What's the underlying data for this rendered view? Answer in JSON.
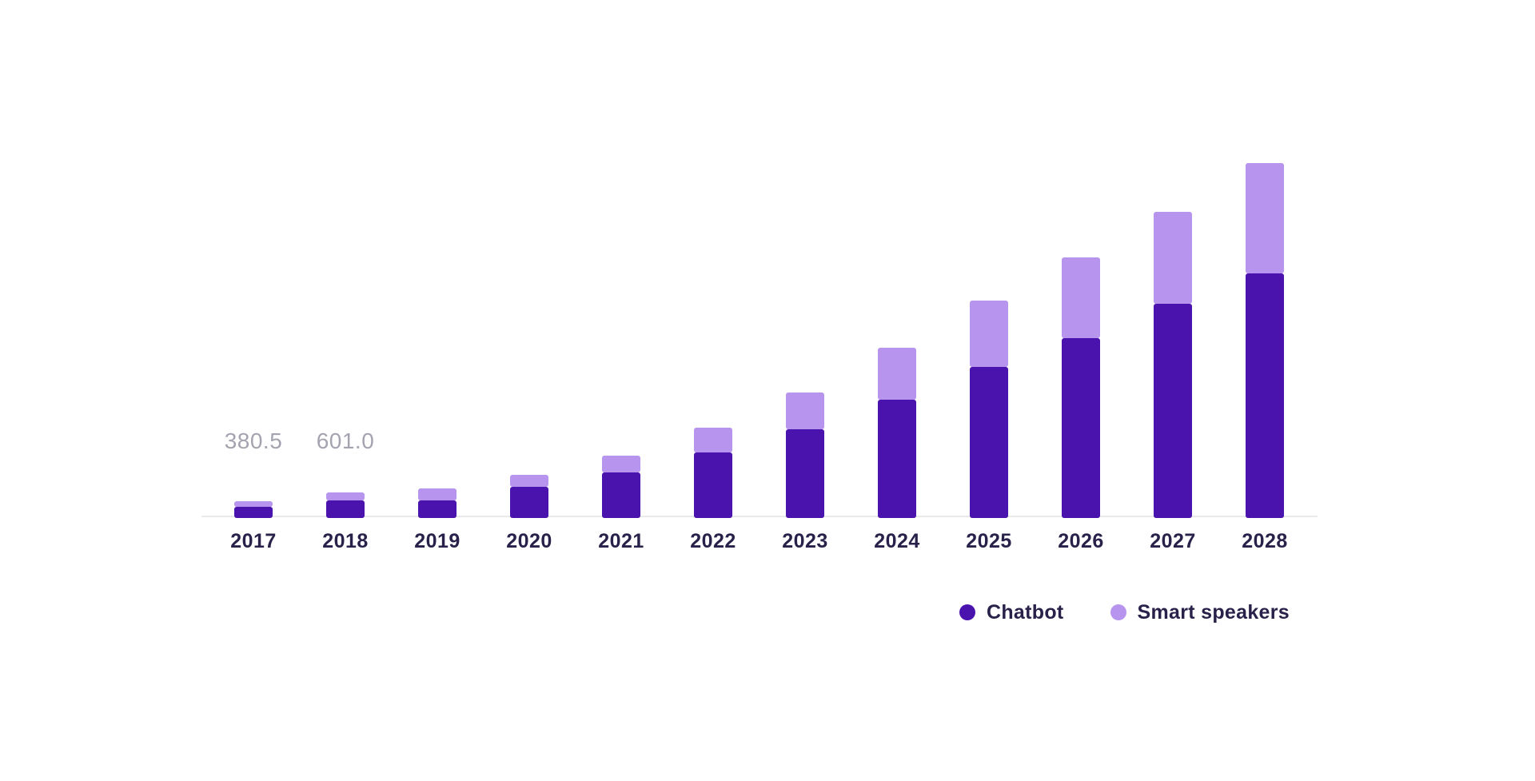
{
  "chart_data": {
    "type": "bar",
    "stacked": true,
    "title": "",
    "categories": [
      "2017",
      "2018",
      "2019",
      "2020",
      "2021",
      "2022",
      "2023",
      "2024",
      "2025",
      "2026",
      "2027",
      "2028"
    ],
    "series": [
      {
        "name": "Chatbot",
        "color": "#4A13AE",
        "values": [
          238,
          405,
          396,
          744,
          1100,
          1600,
          2180,
          2930,
          3735,
          4455,
          5320,
          6075
        ]
      },
      {
        "name": "Smart speakers",
        "color": "#B795EE",
        "values": [
          142.5,
          196,
          300,
          306,
          420,
          628,
          915,
          1285,
          1665,
          2020,
          2300,
          2765
        ]
      }
    ],
    "annotations": [
      {
        "category": "2017",
        "text": "380.5"
      },
      {
        "category": "2018",
        "text": "601.0"
      }
    ],
    "xlabel": "",
    "ylabel": "",
    "ylim": [
      0,
      9000
    ],
    "grid": false,
    "y_axis_visible": false,
    "legend_position": "bottom-right"
  },
  "colors": {
    "chatbot": "#4A13AE",
    "smart_speakers": "#B795EE",
    "axis_line": "#E9E9EC",
    "annotation_text": "#A4A4B0",
    "label_text": "#292149",
    "background": "#FFFFFF"
  }
}
